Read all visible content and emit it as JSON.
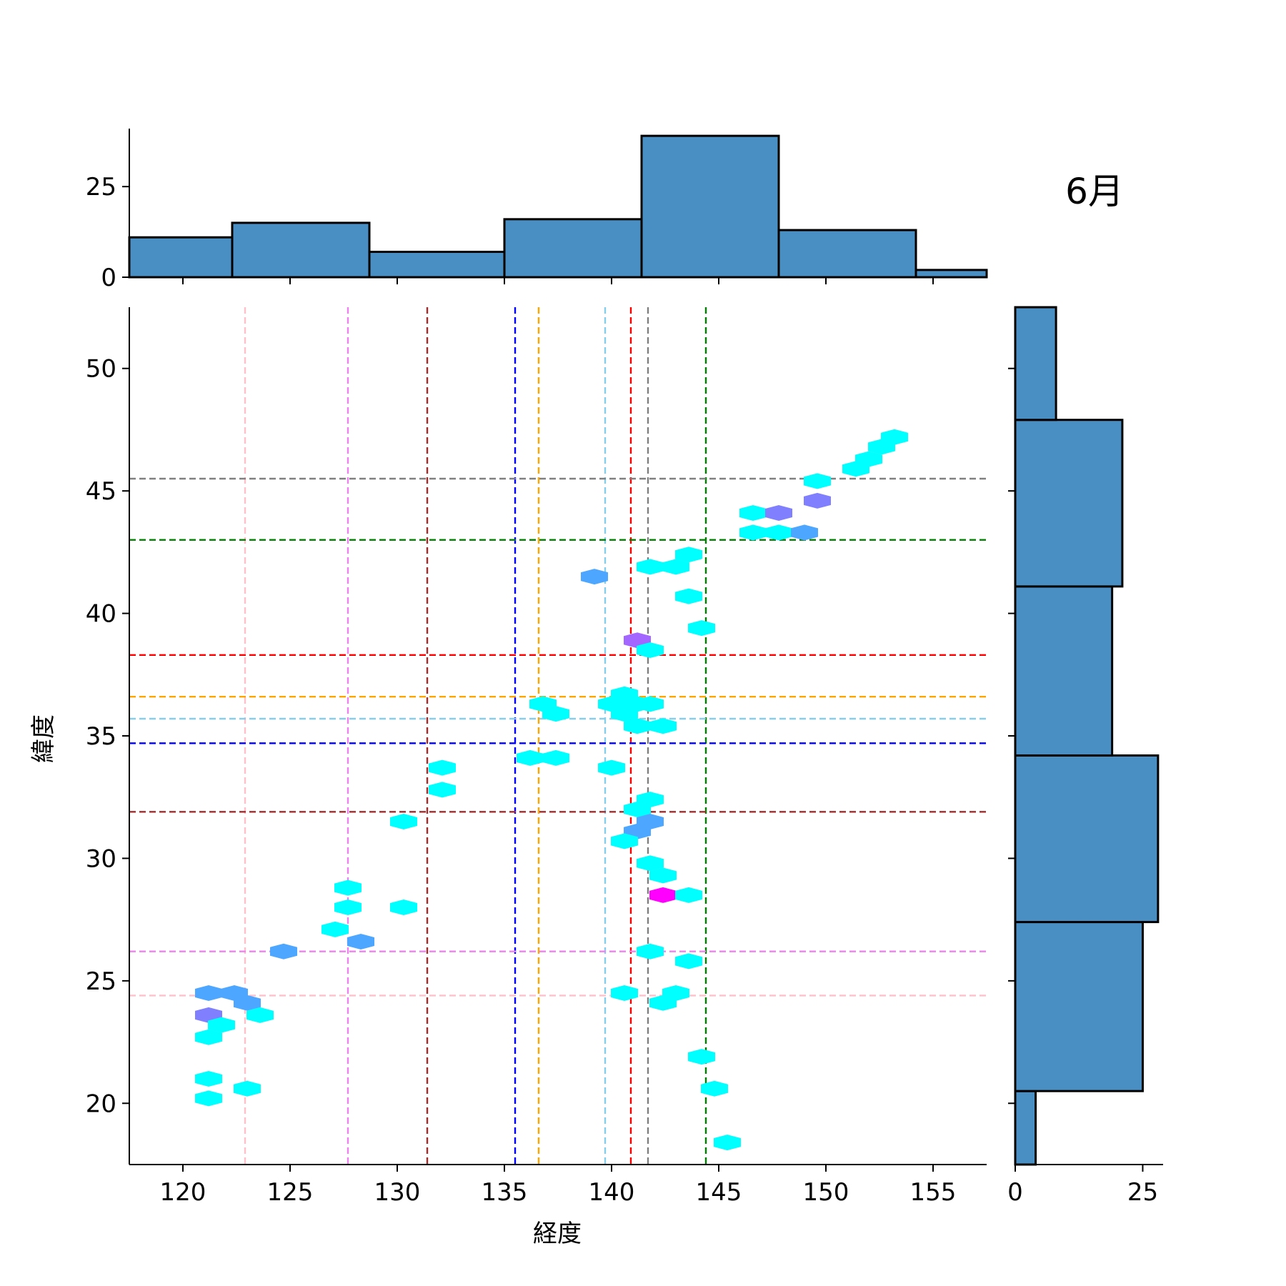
{
  "chart_data": {
    "type": "hexbin-joint",
    "title": "6月",
    "xlabel": "経度",
    "ylabel": "緯度",
    "xlim": [
      117.5,
      157.5
    ],
    "ylim": [
      17.5,
      52.5
    ],
    "xticks": [
      120,
      125,
      130,
      135,
      140,
      145,
      150,
      155
    ],
    "yticks": [
      20,
      25,
      30,
      35,
      40,
      45,
      50
    ],
    "grid": false,
    "legend": "none",
    "vlines": [
      {
        "x": 122.9,
        "color": "#ffc0cb"
      },
      {
        "x": 127.7,
        "color": "#ee82ee"
      },
      {
        "x": 131.4,
        "color": "#a52a2a"
      },
      {
        "x": 135.5,
        "color": "#0000ff"
      },
      {
        "x": 136.6,
        "color": "#ffa500"
      },
      {
        "x": 139.7,
        "color": "#87ceeb"
      },
      {
        "x": 140.9,
        "color": "#ff0000"
      },
      {
        "x": 141.7,
        "color": "#808080"
      },
      {
        "x": 144.4,
        "color": "#008000"
      }
    ],
    "hlines": [
      {
        "y": 24.4,
        "color": "#ffc0cb"
      },
      {
        "y": 26.2,
        "color": "#ee82ee"
      },
      {
        "y": 31.9,
        "color": "#a52a2a"
      },
      {
        "y": 34.7,
        "color": "#0000ff"
      },
      {
        "y": 35.7,
        "color": "#87ceeb"
      },
      {
        "y": 36.6,
        "color": "#ffa500"
      },
      {
        "y": 38.3,
        "color": "#ff0000"
      },
      {
        "y": 43.0,
        "color": "#008000"
      },
      {
        "y": 45.5,
        "color": "#808080"
      }
    ],
    "hexbins": [
      {
        "x": 121.2,
        "y": 24.5,
        "count": 2
      },
      {
        "x": 122.4,
        "y": 24.5,
        "count": 2
      },
      {
        "x": 123.0,
        "y": 24.1,
        "count": 2
      },
      {
        "x": 121.2,
        "y": 23.6,
        "count": 3
      },
      {
        "x": 121.8,
        "y": 23.2,
        "count": 1
      },
      {
        "x": 123.6,
        "y": 23.6,
        "count": 1
      },
      {
        "x": 121.2,
        "y": 22.7,
        "count": 1
      },
      {
        "x": 121.2,
        "y": 21.0,
        "count": 1
      },
      {
        "x": 121.2,
        "y": 20.2,
        "count": 1
      },
      {
        "x": 123.0,
        "y": 20.6,
        "count": 1
      },
      {
        "x": 124.7,
        "y": 26.2,
        "count": 2
      },
      {
        "x": 127.1,
        "y": 27.1,
        "count": 1
      },
      {
        "x": 127.7,
        "y": 28.0,
        "count": 1
      },
      {
        "x": 127.7,
        "y": 28.8,
        "count": 1
      },
      {
        "x": 128.3,
        "y": 26.6,
        "count": 2
      },
      {
        "x": 130.3,
        "y": 28.0,
        "count": 1
      },
      {
        "x": 130.3,
        "y": 31.5,
        "count": 1
      },
      {
        "x": 132.1,
        "y": 32.8,
        "count": 1
      },
      {
        "x": 132.1,
        "y": 33.7,
        "count": 1
      },
      {
        "x": 136.2,
        "y": 34.1,
        "count": 1
      },
      {
        "x": 137.4,
        "y": 34.1,
        "count": 1
      },
      {
        "x": 136.8,
        "y": 36.3,
        "count": 1
      },
      {
        "x": 137.4,
        "y": 35.9,
        "count": 1
      },
      {
        "x": 139.2,
        "y": 41.5,
        "count": 2
      },
      {
        "x": 140.0,
        "y": 33.7,
        "count": 1
      },
      {
        "x": 140.0,
        "y": 36.3,
        "count": 1
      },
      {
        "x": 140.6,
        "y": 35.9,
        "count": 1
      },
      {
        "x": 140.6,
        "y": 36.7,
        "count": 1
      },
      {
        "x": 141.2,
        "y": 36.3,
        "count": 1
      },
      {
        "x": 141.8,
        "y": 36.3,
        "count": 1
      },
      {
        "x": 141.2,
        "y": 35.4,
        "count": 1
      },
      {
        "x": 142.4,
        "y": 35.4,
        "count": 1
      },
      {
        "x": 141.2,
        "y": 38.9,
        "count": 4
      },
      {
        "x": 141.8,
        "y": 38.5,
        "count": 1
      },
      {
        "x": 141.8,
        "y": 41.9,
        "count": 1
      },
      {
        "x": 143.0,
        "y": 41.9,
        "count": 1
      },
      {
        "x": 143.6,
        "y": 42.4,
        "count": 1
      },
      {
        "x": 143.6,
        "y": 40.7,
        "count": 1
      },
      {
        "x": 144.2,
        "y": 39.4,
        "count": 1
      },
      {
        "x": 141.8,
        "y": 32.4,
        "count": 1
      },
      {
        "x": 141.2,
        "y": 32.0,
        "count": 1
      },
      {
        "x": 141.8,
        "y": 31.5,
        "count": 2
      },
      {
        "x": 141.2,
        "y": 31.1,
        "count": 2
      },
      {
        "x": 140.6,
        "y": 30.7,
        "count": 1
      },
      {
        "x": 141.8,
        "y": 29.8,
        "count": 1
      },
      {
        "x": 142.4,
        "y": 29.3,
        "count": 1
      },
      {
        "x": 142.4,
        "y": 28.5,
        "count": 6
      },
      {
        "x": 143.6,
        "y": 28.5,
        "count": 1
      },
      {
        "x": 141.8,
        "y": 26.2,
        "count": 1
      },
      {
        "x": 143.6,
        "y": 25.8,
        "count": 1
      },
      {
        "x": 140.6,
        "y": 24.5,
        "count": 1
      },
      {
        "x": 143.0,
        "y": 24.5,
        "count": 1
      },
      {
        "x": 142.4,
        "y": 24.1,
        "count": 1
      },
      {
        "x": 144.2,
        "y": 21.9,
        "count": 1
      },
      {
        "x": 144.8,
        "y": 20.6,
        "count": 1
      },
      {
        "x": 145.4,
        "y": 18.4,
        "count": 1
      },
      {
        "x": 146.6,
        "y": 43.3,
        "count": 1
      },
      {
        "x": 147.8,
        "y": 43.3,
        "count": 1
      },
      {
        "x": 149.0,
        "y": 43.3,
        "count": 2
      },
      {
        "x": 146.6,
        "y": 44.1,
        "count": 1
      },
      {
        "x": 147.8,
        "y": 44.1,
        "count": 3
      },
      {
        "x": 149.6,
        "y": 44.6,
        "count": 3
      },
      {
        "x": 149.6,
        "y": 45.4,
        "count": 1
      },
      {
        "x": 151.4,
        "y": 45.9,
        "count": 1
      },
      {
        "x": 152.0,
        "y": 46.3,
        "count": 1
      },
      {
        "x": 152.6,
        "y": 46.8,
        "count": 1
      },
      {
        "x": 153.2,
        "y": 47.2,
        "count": 1
      }
    ],
    "hist_x": {
      "bins": [
        {
          "x0": 117.5,
          "x1": 122.3,
          "count": 11
        },
        {
          "x0": 122.3,
          "x1": 128.7,
          "count": 15
        },
        {
          "x0": 128.7,
          "x1": 135.0,
          "count": 7
        },
        {
          "x0": 135.0,
          "x1": 141.4,
          "count": 16
        },
        {
          "x0": 141.4,
          "x1": 147.8,
          "count": 39
        },
        {
          "x0": 147.8,
          "x1": 154.2,
          "count": 13
        },
        {
          "x0": 154.2,
          "x1": 157.5,
          "count": 2
        }
      ],
      "yticks": [
        0,
        25
      ],
      "ylim": [
        0,
        41
      ]
    },
    "hist_y": {
      "bins": [
        {
          "y0": 17.5,
          "y1": 20.5,
          "count": 4
        },
        {
          "y0": 20.5,
          "y1": 27.4,
          "count": 25
        },
        {
          "y0": 27.4,
          "y1": 34.2,
          "count": 28
        },
        {
          "y0": 34.2,
          "y1": 41.1,
          "count": 19
        },
        {
          "y0": 41.1,
          "y1": 47.9,
          "count": 21
        },
        {
          "y0": 47.9,
          "y1": 52.5,
          "count": 8
        }
      ],
      "xticks": [
        0,
        25
      ],
      "xlim": [
        0,
        29
      ]
    },
    "hist_color": "#4a8fc4",
    "hex_colors": {
      "1": "#00ffff",
      "2": "#4da6ff",
      "3": "#8080ff",
      "4": "#a366ff",
      "6": "#ff00ff"
    }
  }
}
